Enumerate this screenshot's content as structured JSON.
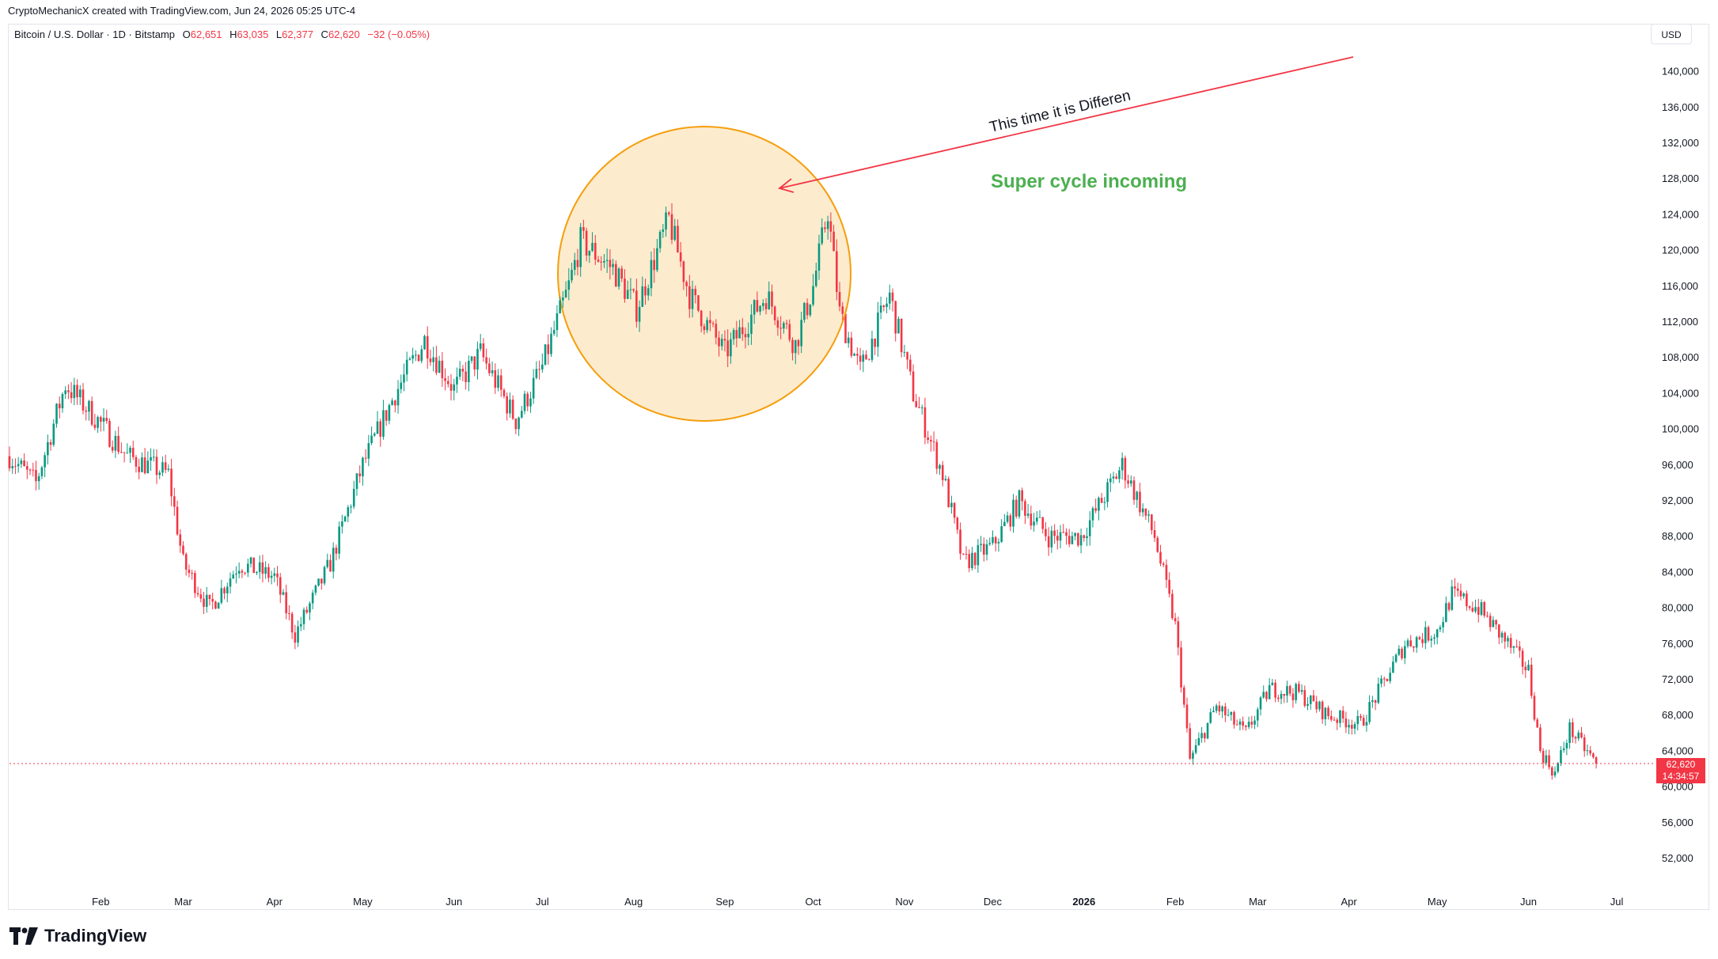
{
  "header": {
    "attribution": "CryptoMechanicX created with TradingView.com, Jun 24, 2026 05:25 UTC-4"
  },
  "symbol": {
    "name": "Bitcoin / U.S. Dollar · 1D · Bitstamp",
    "open_label": "O",
    "open": "62,651",
    "high_label": "H",
    "high": "63,035",
    "low_label": "L",
    "low": "62,377",
    "close_label": "C",
    "close": "62,620",
    "change": "−32 (−0.05%)"
  },
  "currency_button": "USD",
  "price_tag": {
    "price": "62,620",
    "countdown": "14:34:57"
  },
  "annotations": {
    "arrow_text": "This time it is Differen",
    "headline": "Super cycle incoming"
  },
  "branding": {
    "logo_text": "TradingView"
  },
  "colors": {
    "up": "#089981",
    "down": "#f23645",
    "circle_fill": "#fde7c6",
    "circle_stroke": "#f59e0b",
    "headline": "#4caf50",
    "arrow": "#f23645"
  },
  "chart_data": {
    "type": "candlestick",
    "y_axis": {
      "min": 48000,
      "max": 144000,
      "ticks": [
        "140,000",
        "136,000",
        "132,000",
        "128,000",
        "124,000",
        "120,000",
        "116,000",
        "112,000",
        "108,000",
        "104,000",
        "100,000",
        "96,000",
        "92,000",
        "88,000",
        "84,000",
        "80,000",
        "76,000",
        "72,000",
        "68,000",
        "64,000",
        "60,000",
        "56,000",
        "52,000"
      ]
    },
    "x_axis_labels": [
      "Feb",
      "Mar",
      "Apr",
      "May",
      "Jun",
      "Jul",
      "Aug",
      "Sep",
      "Oct",
      "Nov",
      "Dec",
      "2026",
      "Feb",
      "Mar",
      "Apr",
      "May",
      "Jun",
      "Jul"
    ],
    "x_axis_bold": "2026",
    "price_path": [
      [
        "2025-01-01",
        97000
      ],
      [
        "2025-01-10",
        94000
      ],
      [
        "2025-01-20",
        105000
      ],
      [
        "2025-01-31",
        101000
      ],
      [
        "2025-02-10",
        97000
      ],
      [
        "2025-02-24",
        95000
      ],
      [
        "2025-03-01",
        85000
      ],
      [
        "2025-03-10",
        80000
      ],
      [
        "2025-03-20",
        85000
      ],
      [
        "2025-04-01",
        83500
      ],
      [
        "2025-04-08",
        77000
      ],
      [
        "2025-04-20",
        85000
      ],
      [
        "2025-05-01",
        96000
      ],
      [
        "2025-05-12",
        104000
      ],
      [
        "2025-05-22",
        110000
      ],
      [
        "2025-06-01",
        104500
      ],
      [
        "2025-06-10",
        108500
      ],
      [
        "2025-06-22",
        101000
      ],
      [
        "2025-07-01",
        107000
      ],
      [
        "2025-07-10",
        116000
      ],
      [
        "2025-07-14",
        121000
      ],
      [
        "2025-07-25",
        118000
      ],
      [
        "2025-08-02",
        113500
      ],
      [
        "2025-08-13",
        123500
      ],
      [
        "2025-08-20",
        115000
      ],
      [
        "2025-09-01",
        108500
      ],
      [
        "2025-09-15",
        115000
      ],
      [
        "2025-09-25",
        109500
      ],
      [
        "2025-10-01",
        116000
      ],
      [
        "2025-10-06",
        124500
      ],
      [
        "2025-10-10",
        113000
      ],
      [
        "2025-10-17",
        106500
      ],
      [
        "2025-10-27",
        115000
      ],
      [
        "2025-11-04",
        104000
      ],
      [
        "2025-11-14",
        95000
      ],
      [
        "2025-11-21",
        85000
      ],
      [
        "2025-12-01",
        87000
      ],
      [
        "2025-12-10",
        92000
      ],
      [
        "2025-12-20",
        88000
      ],
      [
        "2025-12-31",
        88000
      ],
      [
        "2026-01-14",
        96000
      ],
      [
        "2026-01-25",
        88000
      ],
      [
        "2026-02-01",
        78000
      ],
      [
        "2026-02-06",
        63000
      ],
      [
        "2026-02-15",
        69000
      ],
      [
        "2026-02-25",
        66000
      ],
      [
        "2026-03-05",
        71000
      ],
      [
        "2026-03-15",
        70500
      ],
      [
        "2026-03-25",
        68000
      ],
      [
        "2026-04-05",
        67000
      ],
      [
        "2026-04-20",
        76000
      ],
      [
        "2026-05-01",
        77500
      ],
      [
        "2026-05-06",
        81500
      ],
      [
        "2026-05-15",
        80000
      ],
      [
        "2026-05-25",
        76000
      ],
      [
        "2026-06-01",
        73000
      ],
      [
        "2026-06-05",
        64000
      ],
      [
        "2026-06-10",
        61500
      ],
      [
        "2026-06-15",
        66500
      ],
      [
        "2026-06-24",
        62620
      ]
    ],
    "last_price": 62620
  }
}
